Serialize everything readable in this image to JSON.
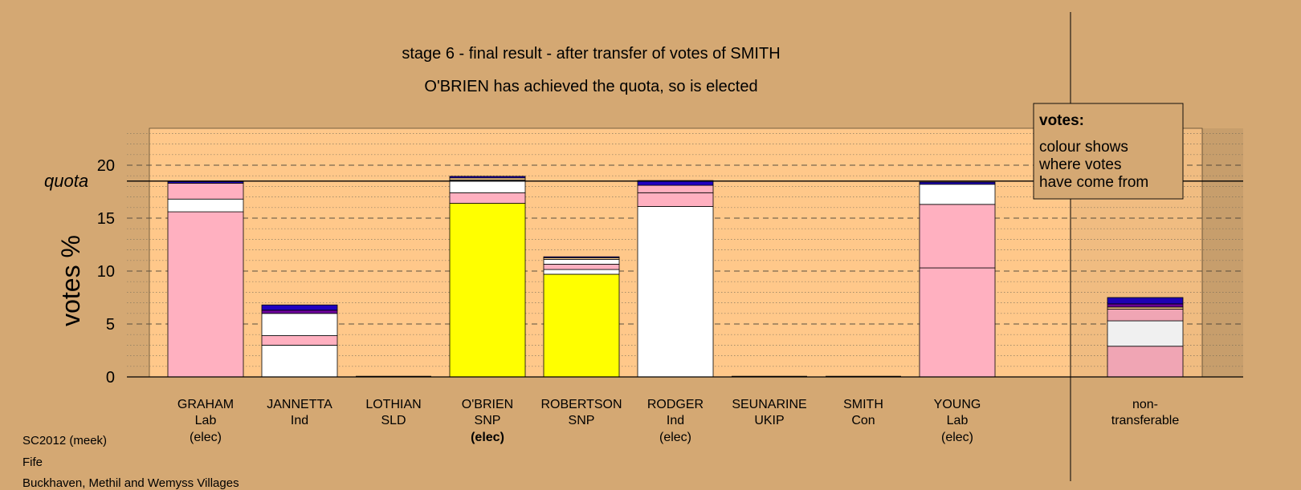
{
  "chart_data": {
    "type": "bar",
    "stacked": true,
    "title": "stage 6 - final result - after transfer of votes of SMITH",
    "subtitle": "O'BRIEN has achieved the quota, so is elected",
    "ylabel": "votes %",
    "ylim": [
      0,
      24.5
    ],
    "yticks": [
      0,
      5,
      10,
      15,
      20
    ],
    "quota": 18.5,
    "quota_label": "quota",
    "grid": true,
    "legend": {
      "placement": "top-right",
      "title": "votes:",
      "lines": [
        "colour shows",
        "where votes",
        "have come from"
      ]
    },
    "colors": {
      "Lab": "#ffb0c0",
      "SNP": "#ffff00",
      "Ind": "#ffffff",
      "SLD": "#ffd090",
      "UKIP": "#7000a0",
      "Con": "#2000c0",
      "background": "#d4a873",
      "plot_bg": "#ffc88a"
    },
    "candidates": [
      {
        "name": "GRAHAM",
        "party": "Lab",
        "status": "(elec)",
        "bold": false,
        "segments": [
          {
            "party": "Lab",
            "value": 15.6
          },
          {
            "party": "Ind",
            "value": 1.2
          },
          {
            "party": "Lab",
            "value": 1.5
          },
          {
            "party": "Con",
            "value": 0.15
          }
        ]
      },
      {
        "name": "JANNETTA",
        "party": "Ind",
        "status": "",
        "bold": false,
        "segments": [
          {
            "party": "Ind",
            "value": 3.0
          },
          {
            "party": "Lab",
            "value": 0.9
          },
          {
            "party": "Ind",
            "value": 2.1
          },
          {
            "party": "UKIP",
            "value": 0.3
          },
          {
            "party": "Con",
            "value": 0.5
          }
        ]
      },
      {
        "name": "LOTHIAN",
        "party": "SLD",
        "status": "",
        "bold": false,
        "segments": []
      },
      {
        "name": "O'BRIEN",
        "party": "SNP",
        "status": "(elec)",
        "bold": true,
        "segments": [
          {
            "party": "SNP",
            "value": 16.4
          },
          {
            "party": "Lab",
            "value": 1.0
          },
          {
            "party": "Ind",
            "value": 1.2
          },
          {
            "party": "SLD",
            "value": 0.2
          },
          {
            "party": "Con",
            "value": 0.15
          }
        ]
      },
      {
        "name": "ROBERTSON",
        "party": "SNP",
        "status": "",
        "bold": false,
        "segments": [
          {
            "party": "SNP",
            "value": 9.7
          },
          {
            "party": "Ind",
            "value": 0.45
          },
          {
            "party": "Lab",
            "value": 0.5
          },
          {
            "party": "Ind",
            "value": 0.45
          },
          {
            "party": "SLD",
            "value": 0.15
          },
          {
            "party": "Con",
            "value": 0.1
          }
        ]
      },
      {
        "name": "RODGER",
        "party": "Ind",
        "status": "(elec)",
        "bold": false,
        "segments": [
          {
            "party": "Ind",
            "value": 16.1
          },
          {
            "party": "Lab",
            "value": 1.3
          },
          {
            "party": "Lab",
            "value": 0.7
          },
          {
            "party": "Con",
            "value": 0.45
          }
        ]
      },
      {
        "name": "SEUNARINE",
        "party": "UKIP",
        "status": "",
        "bold": false,
        "segments": []
      },
      {
        "name": "SMITH",
        "party": "Con",
        "status": "",
        "bold": false,
        "segments": []
      },
      {
        "name": "YOUNG",
        "party": "Lab",
        "status": "(elec)",
        "bold": false,
        "segments": [
          {
            "party": "Lab",
            "value": 10.3
          },
          {
            "party": "Lab",
            "value": 6.0
          },
          {
            "party": "Ind",
            "value": 1.9
          },
          {
            "party": "Con",
            "value": 0.2
          }
        ]
      },
      {
        "name": "non-",
        "party": "transferable",
        "status": "",
        "bold": false,
        "segments": [
          {
            "party": "Lab",
            "value": 2.9
          },
          {
            "party": "Ind",
            "value": 2.4
          },
          {
            "party": "Lab",
            "value": 1.1
          },
          {
            "party": "SLD",
            "value": 0.2
          },
          {
            "party": "UKIP",
            "value": 0.3
          },
          {
            "party": "Con",
            "value": 0.6
          }
        ]
      }
    ]
  },
  "footer": {
    "line1": "SC2012 (meek)",
    "line2": "Fife",
    "line3": "Buckhaven, Methil and Wemyss Villages"
  }
}
